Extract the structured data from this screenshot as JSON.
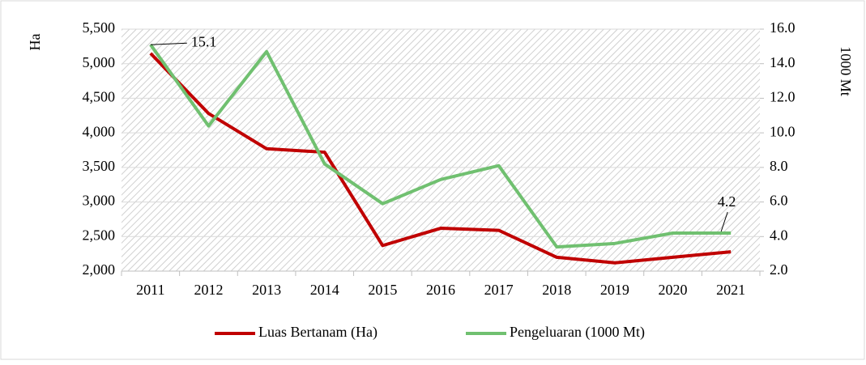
{
  "chart_data": {
    "type": "line",
    "ylabel": "Ha",
    "y2label": "1000 Mt",
    "categories": [
      "2011",
      "2012",
      "2013",
      "2014",
      "2015",
      "2016",
      "2017",
      "2018",
      "2019",
      "2020",
      "2021"
    ],
    "series": [
      {
        "name": "Luas Bertanam (Ha)",
        "color": "#c00000",
        "values": [
          5150,
          4280,
          3770,
          3720,
          2370,
          2620,
          2590,
          2200,
          2120,
          2200,
          2280
        ]
      },
      {
        "name": "Pengeluaran (1000 Mt)",
        "color": "#70c070",
        "axis": "y2",
        "values": [
          15.1,
          10.4,
          14.7,
          8.2,
          5.9,
          7.3,
          8.1,
          3.4,
          3.6,
          4.2,
          4.2
        ],
        "value_labels": [
          "15.1",
          null,
          null,
          null,
          null,
          null,
          null,
          null,
          null,
          null,
          "4.2"
        ]
      }
    ],
    "ylim": [
      2000,
      5500
    ],
    "yticks": [
      {
        "value": 2000,
        "label": "2,000"
      },
      {
        "value": 2500,
        "label": "2,500"
      },
      {
        "value": 3000,
        "label": "3,000"
      },
      {
        "value": 3500,
        "label": "3,500"
      },
      {
        "value": 4000,
        "label": "4,000"
      },
      {
        "value": 4500,
        "label": "4,500"
      },
      {
        "value": 5000,
        "label": "5,000"
      },
      {
        "value": 5500,
        "label": "5,500"
      }
    ],
    "y2lim": [
      2,
      16
    ],
    "y2ticks": [
      {
        "value": 2,
        "label": "2.0"
      },
      {
        "value": 4,
        "label": "4.0"
      },
      {
        "value": 6,
        "label": "6.0"
      },
      {
        "value": 8,
        "label": "8.0"
      },
      {
        "value": 10,
        "label": "10.0"
      },
      {
        "value": 12,
        "label": "12.0"
      },
      {
        "value": 14,
        "label": "14.0"
      },
      {
        "value": 16,
        "label": "16.0"
      }
    ],
    "grid": true,
    "legend": "bottom"
  }
}
